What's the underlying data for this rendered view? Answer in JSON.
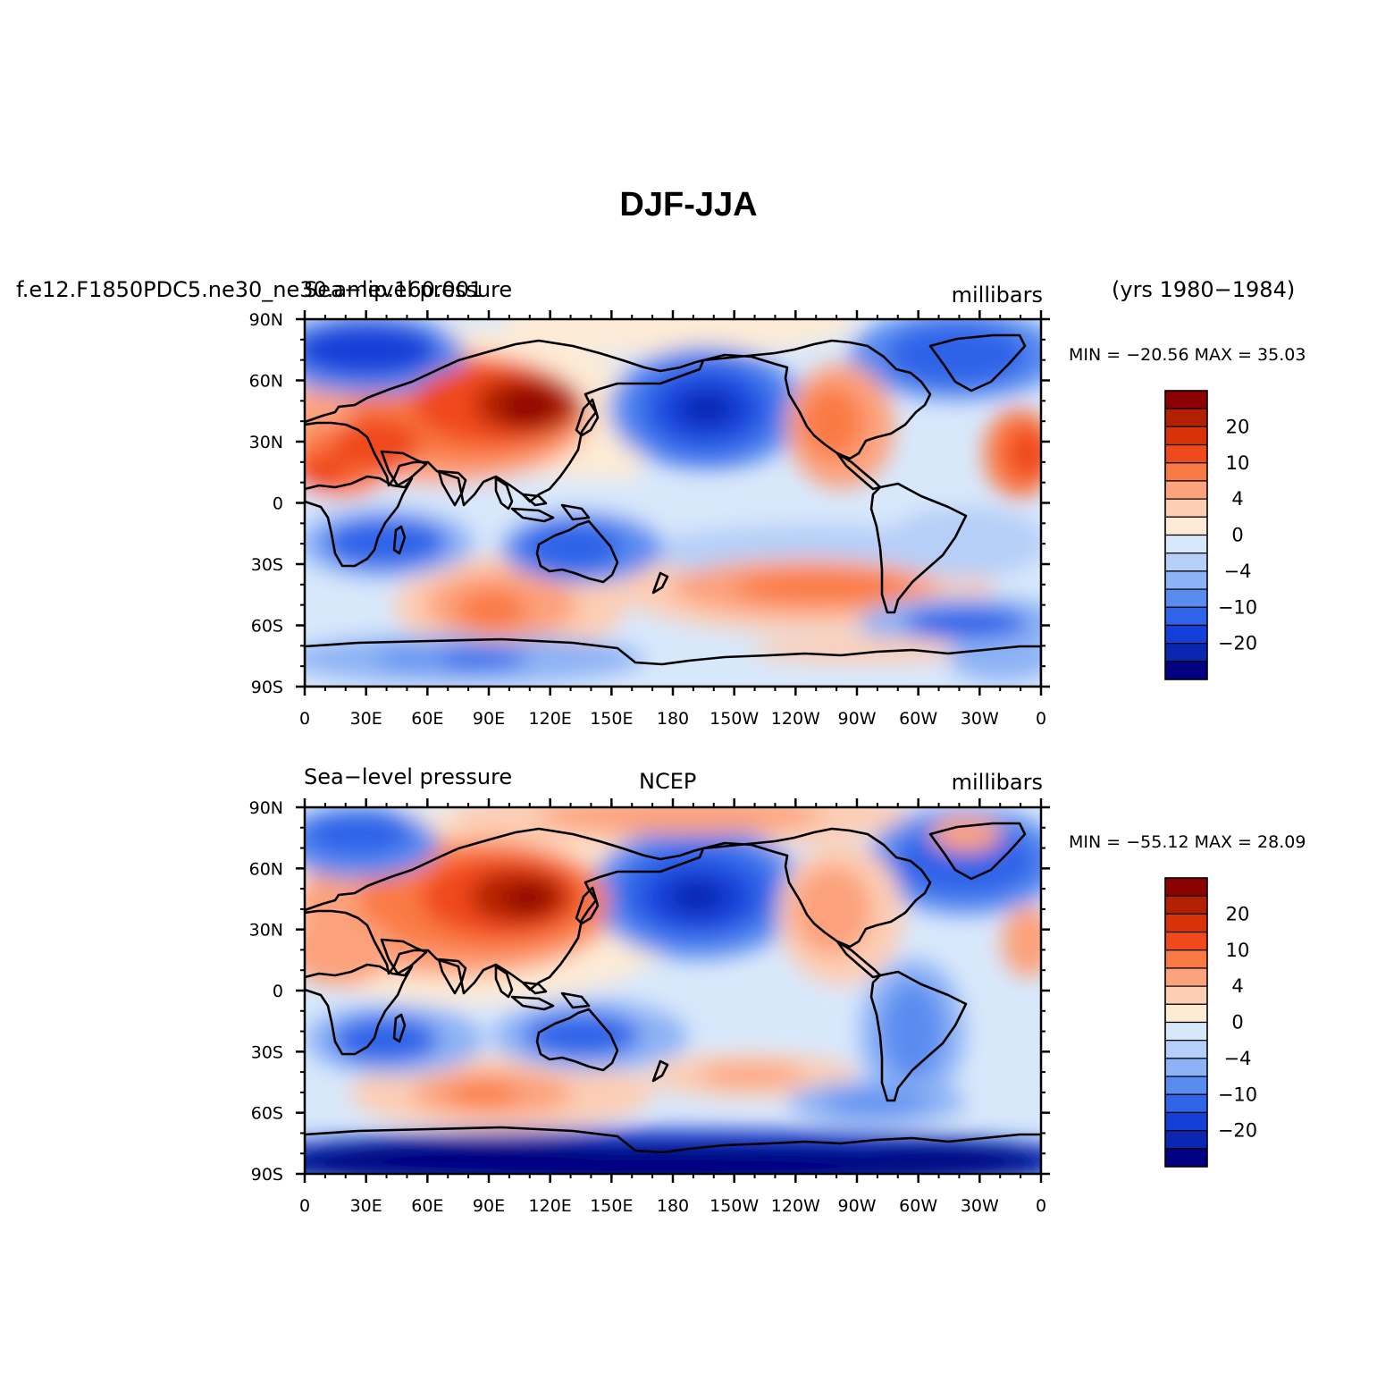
{
  "figure": {
    "title": "DJF-JJA",
    "years": "(yrs 1980−1984)"
  },
  "panels": [
    {
      "source": "f.e12.F1850PDC5.ne30_ne30.amip.160.001",
      "variable": "Sea−level pressure",
      "units": "millibars",
      "min_label": "MIN =",
      "min": "−20.56",
      "max_label": "MAX =",
      "max": "35.03"
    },
    {
      "source": "NCEP",
      "variable": "Sea−level pressure",
      "units": "millibars",
      "min_label": "MIN =",
      "min": "−55.12",
      "max_label": "MAX =",
      "max": "28.09"
    }
  ],
  "axes": {
    "lon_ticks": [
      "0",
      "30E",
      "60E",
      "90E",
      "120E",
      "150E",
      "180",
      "150W",
      "120W",
      "90W",
      "60W",
      "30W",
      "0"
    ],
    "lat_ticks": [
      "90N",
      "60N",
      "30N",
      "0",
      "30S",
      "60S",
      "90S"
    ]
  },
  "colorbar": {
    "labels": [
      "20",
      "10",
      "4",
      "0",
      "−4",
      "−10",
      "−20"
    ],
    "colors": [
      "#8b0000",
      "#b22000",
      "#d83208",
      "#f04a1a",
      "#fa7a45",
      "#fca27c",
      "#fdcdb4",
      "#fdebd6",
      "#d8e8fb",
      "#b6cff8",
      "#8db2f5",
      "#5a8cf0",
      "#2f63e8",
      "#1440d8",
      "#0b26b0",
      "#000080"
    ]
  },
  "colors": {
    "ocean": "#d8e8fb",
    "coast": "#000000"
  }
}
